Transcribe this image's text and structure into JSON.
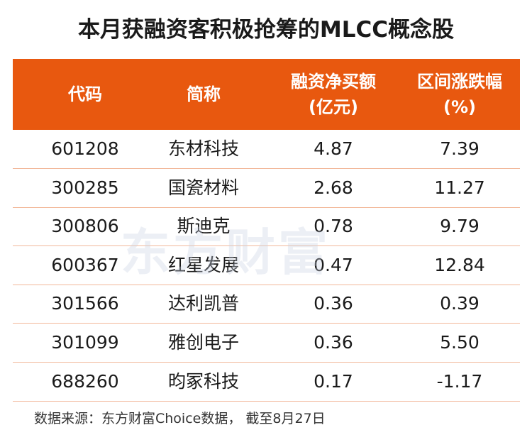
{
  "title": "本月获融资客积极抢筹的MLCC概念股",
  "table": {
    "headers": [
      [
        "代码"
      ],
      [
        "简称"
      ],
      [
        "融资净买额",
        "(亿元)"
      ],
      [
        "区间涨跌幅",
        "(%)"
      ]
    ],
    "rows": [
      [
        "601208",
        "东材科技",
        "4.87",
        "7.39"
      ],
      [
        "300285",
        "国瓷材料",
        "2.68",
        "11.27"
      ],
      [
        "300806",
        "斯迪克",
        "0.78",
        "9.79"
      ],
      [
        "600367",
        "红星发展",
        "0.47",
        "12.84"
      ],
      [
        "301566",
        "达利凯普",
        "0.36",
        "0.39"
      ],
      [
        "301099",
        "雅创电子",
        "0.36",
        "5.50"
      ],
      [
        "688260",
        "昀冢科技",
        "0.17",
        "-1.17"
      ]
    ]
  },
  "watermark": "东方财富",
  "footer": "数据来源：东方财富Choice数据， 截至8月27日"
}
